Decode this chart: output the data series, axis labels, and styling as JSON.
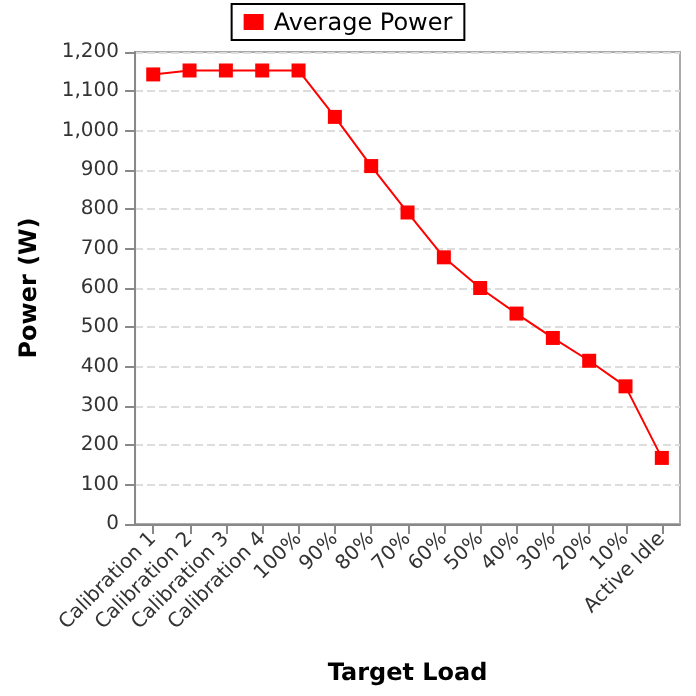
{
  "chart_data": {
    "type": "line",
    "xlabel": "Target Load",
    "ylabel": "Power (W)",
    "categories": [
      "Calibration 1",
      "Calibration 2",
      "Calibration 3",
      "Calibration 4",
      "100%",
      "90%",
      "80%",
      "70%",
      "60%",
      "50%",
      "40%",
      "30%",
      "20%",
      "10%",
      "Active Idle"
    ],
    "series": [
      {
        "name": "Average Power",
        "color": "#ff0000",
        "values": [
          1143,
          1153,
          1153,
          1153,
          1153,
          1035,
          910,
          792,
          678,
          600,
          535,
          473,
          415,
          350,
          168
        ]
      }
    ],
    "ylim": [
      0,
      1200
    ],
    "yticks": [
      0,
      100,
      200,
      300,
      400,
      500,
      600,
      700,
      800,
      900,
      {
        "value": 1000,
        "label": "1,000"
      },
      {
        "value": 1100,
        "label": "1,100"
      },
      {
        "value": 1200,
        "label": "1,200"
      }
    ],
    "grid": "y",
    "legend": "top",
    "marker": "square",
    "line_style": "solid"
  }
}
